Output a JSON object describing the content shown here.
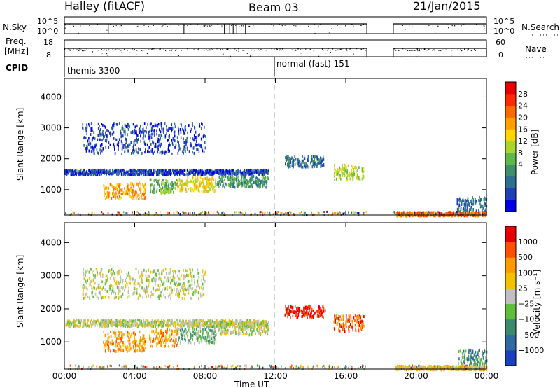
{
  "header": {
    "radar": "Halley (fitACF)",
    "beam": "Beam 03",
    "date": "21/Jan/2015"
  },
  "summary_panels": {
    "nsky_label": "N.Sky",
    "nsky_ticks": [
      "10^5",
      "10^0"
    ],
    "nsearch_label": "N.Search",
    "nsearch_ticks": [
      "10^5",
      "10^0"
    ],
    "freq_label": "Freq.",
    "freq_unit": "[MHz]",
    "freq_ticks": [
      "18",
      "8"
    ],
    "nave_label": "Nave",
    "nave_ticks": [
      "60",
      "0"
    ],
    "cpid_label": "CPID",
    "cpid_segments": [
      "themis 3300",
      "normal (fast) 151"
    ]
  },
  "chart_data": [
    {
      "type": "heatmap",
      "title": "",
      "ylabel": "Slant Range [km]",
      "xlabel": "",
      "x_ticks": [
        "00:00",
        "04:00",
        "08:00",
        "12:00",
        "16:00",
        "20:00",
        "00:00"
      ],
      "x_range_hours": [
        0,
        24
      ],
      "y_ticks": [
        1000,
        2000,
        3000,
        4000
      ],
      "ylim": [
        180,
        4600
      ],
      "colorbar": {
        "label": "Power [dB]",
        "ticks": [
          "28",
          "24",
          "20",
          "16",
          "12",
          "8",
          "4"
        ],
        "colors": [
          "#0000e6",
          "#1e3fb5",
          "#2d6f8f",
          "#3e8f6a",
          "#5fb84a",
          "#a8d62c",
          "#ffd500",
          "#ffa000",
          "#ff6a00",
          "#ff2a00",
          "#e60000"
        ]
      },
      "scatter_regions": [
        {
          "t0": 0.0,
          "t1": 11.6,
          "r": 1600,
          "dr": 80,
          "level": 1
        },
        {
          "t0": 2.2,
          "t1": 4.6,
          "r": 1000,
          "dr": 260,
          "level": 7
        },
        {
          "t0": 4.8,
          "t1": 6.4,
          "r": 1150,
          "dr": 220,
          "level": 4
        },
        {
          "t0": 6.4,
          "t1": 8.6,
          "r": 1200,
          "dr": 230,
          "level": 6
        },
        {
          "t0": 8.6,
          "t1": 11.6,
          "r": 1300,
          "dr": 180,
          "level": 3
        },
        {
          "t0": 12.5,
          "t1": 14.8,
          "r": 1950,
          "dr": 180,
          "level": 2
        },
        {
          "t0": 15.3,
          "t1": 17.0,
          "r": 1600,
          "dr": 250,
          "level": 5
        },
        {
          "t0": 1.0,
          "t1": 8.0,
          "r": 2700,
          "dr": 500,
          "level": 1
        },
        {
          "t0": 22.3,
          "t1": 24.0,
          "r": 550,
          "dr": 250,
          "level": 2
        },
        {
          "t0": 18.8,
          "t1": 24.0,
          "r": 250,
          "dr": 60,
          "level": 8
        }
      ]
    },
    {
      "type": "heatmap",
      "title": "",
      "ylabel": "Slant Range [km]",
      "xlabel": "Time UT",
      "x_ticks": [
        "00:00",
        "04:00",
        "08:00",
        "12:00",
        "16:00",
        "20:00",
        "00:00"
      ],
      "x_range_hours": [
        0,
        24
      ],
      "y_ticks": [
        1000,
        2000,
        3000,
        4000
      ],
      "ylim": [
        180,
        4600
      ],
      "colorbar": {
        "label": "Velocity [m s⁻¹]",
        "ticks": [
          "1000",
          "500",
          "100",
          "25",
          "−25",
          "−100",
          "−500",
          "−1000"
        ],
        "colors": [
          "#1a3fbf",
          "#2f6aa0",
          "#3c8a6e",
          "#5fbe3c",
          "#c0c0c0",
          "#f2c200",
          "#ff9a00",
          "#ff5000",
          "#e60000"
        ]
      },
      "scatter_regions": [
        {
          "t0": 0.0,
          "t1": 11.6,
          "r": 1600,
          "dr": 100,
          "level": 4
        },
        {
          "t0": 2.2,
          "t1": 4.6,
          "r": 1050,
          "dr": 300,
          "level": 6
        },
        {
          "t0": 4.8,
          "t1": 6.4,
          "r": 1150,
          "dr": 260,
          "level": 6
        },
        {
          "t0": 6.4,
          "t1": 8.6,
          "r": 1250,
          "dr": 250,
          "level": 3
        },
        {
          "t0": 8.6,
          "t1": 11.6,
          "r": 1450,
          "dr": 200,
          "level": 4
        },
        {
          "t0": 12.5,
          "t1": 14.8,
          "r": 1950,
          "dr": 180,
          "level": 8
        },
        {
          "t0": 15.3,
          "t1": 17.0,
          "r": 1600,
          "dr": 250,
          "level": 7
        },
        {
          "t0": 1.0,
          "t1": 8.0,
          "r": 2800,
          "dr": 450,
          "level": 4
        },
        {
          "t0": 22.3,
          "t1": 24.0,
          "r": 550,
          "dr": 250,
          "level": 2
        },
        {
          "t0": 18.8,
          "t1": 24.0,
          "r": 250,
          "dr": 60,
          "level": 5
        }
      ]
    }
  ]
}
